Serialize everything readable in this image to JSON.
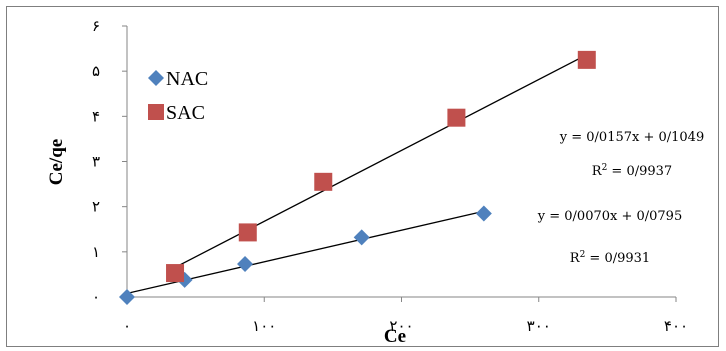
{
  "chart_data": {
    "type": "scatter",
    "xlabel": "Ce",
    "ylabel": "Ce/qe",
    "xlim": [
      0,
      400
    ],
    "ylim": [
      0,
      6
    ],
    "x_ticks": [
      "۰",
      "۱۰۰",
      "۲۰۰",
      "۳۰۰",
      "۴۰۰"
    ],
    "y_ticks": [
      "۰",
      "۱",
      "۲",
      "۳",
      "۴",
      "۵",
      "۶"
    ],
    "grid": false,
    "legend_position": "top-left",
    "series": [
      {
        "name": "NAC",
        "marker": "diamond",
        "color": "#4F81BD",
        "x": [
          0,
          42,
          86,
          171,
          260
        ],
        "y": [
          0.0,
          0.38,
          0.73,
          1.32,
          1.85
        ],
        "trendline": {
          "slope": 0.007,
          "intercept": 0.0795,
          "x_range": [
            0,
            260
          ]
        },
        "equation": "y = 0/0070x + 0/0795",
        "r2": "0/9931"
      },
      {
        "name": "SAC",
        "marker": "square",
        "color": "#C0504D",
        "x": [
          35,
          88,
          143,
          240,
          335
        ],
        "y": [
          0.53,
          1.43,
          2.55,
          3.97,
          5.25
        ],
        "trendline": {
          "slope": 0.0157,
          "intercept": 0.1049,
          "x_range": [
            35,
            335
          ]
        },
        "equation": "y = 0/0157x + 0/1049",
        "r2": "0/9937"
      }
    ]
  }
}
